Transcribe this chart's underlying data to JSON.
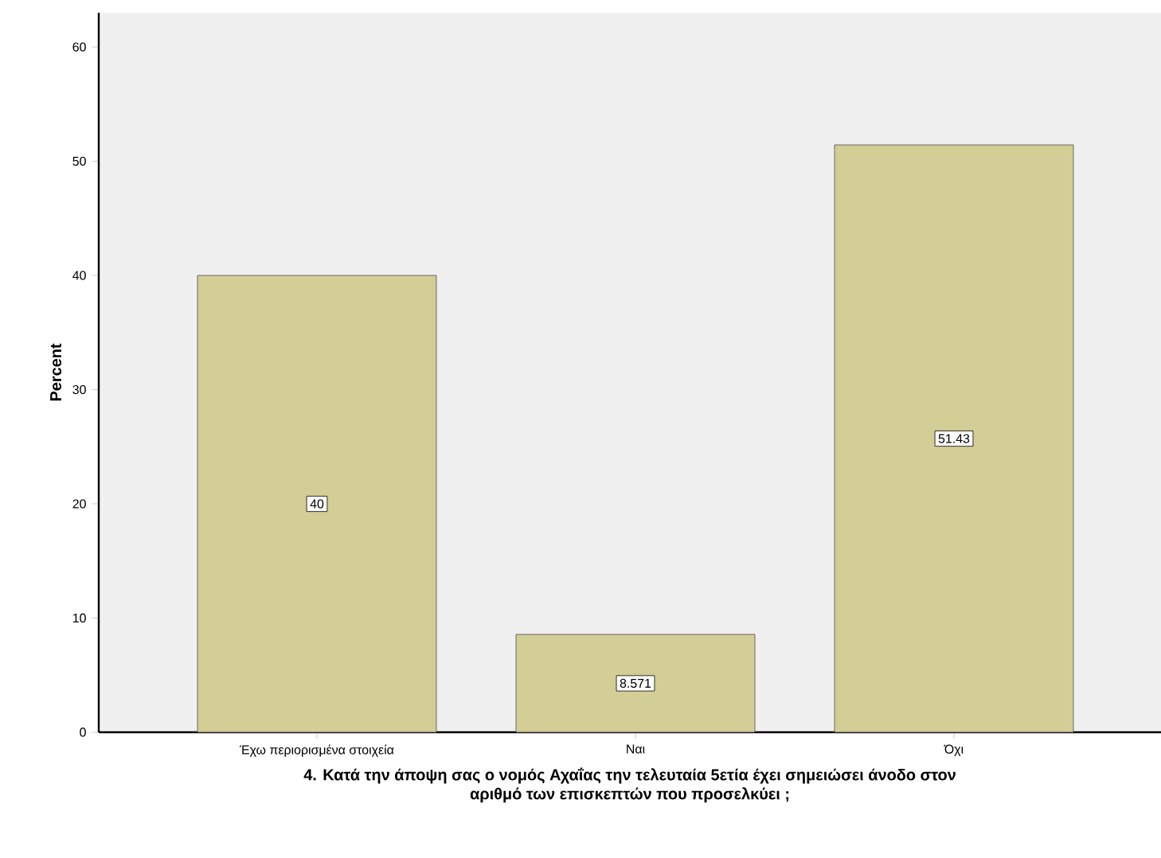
{
  "chart_data": {
    "type": "bar",
    "xlabel": "4. Κατά την άποψη σας ο νομός Αχαΐας την τελευταία 5ετία έχει σημειώσει άνοδο στον αριθμό των επισκεπτών που προσελκύει ;",
    "ylabel": "Percent",
    "categories": [
      "Έχω περιορισμένα στοιχεία",
      "Ναι",
      "Όχι"
    ],
    "values": [
      40,
      8.571,
      51.43
    ],
    "value_labels": [
      "40",
      "8.571",
      "51.43"
    ],
    "color": "#d3cd96",
    "ylim": [
      0,
      63
    ],
    "yticks": [
      0,
      10,
      20,
      30,
      40,
      50,
      60
    ],
    "grid": false
  }
}
